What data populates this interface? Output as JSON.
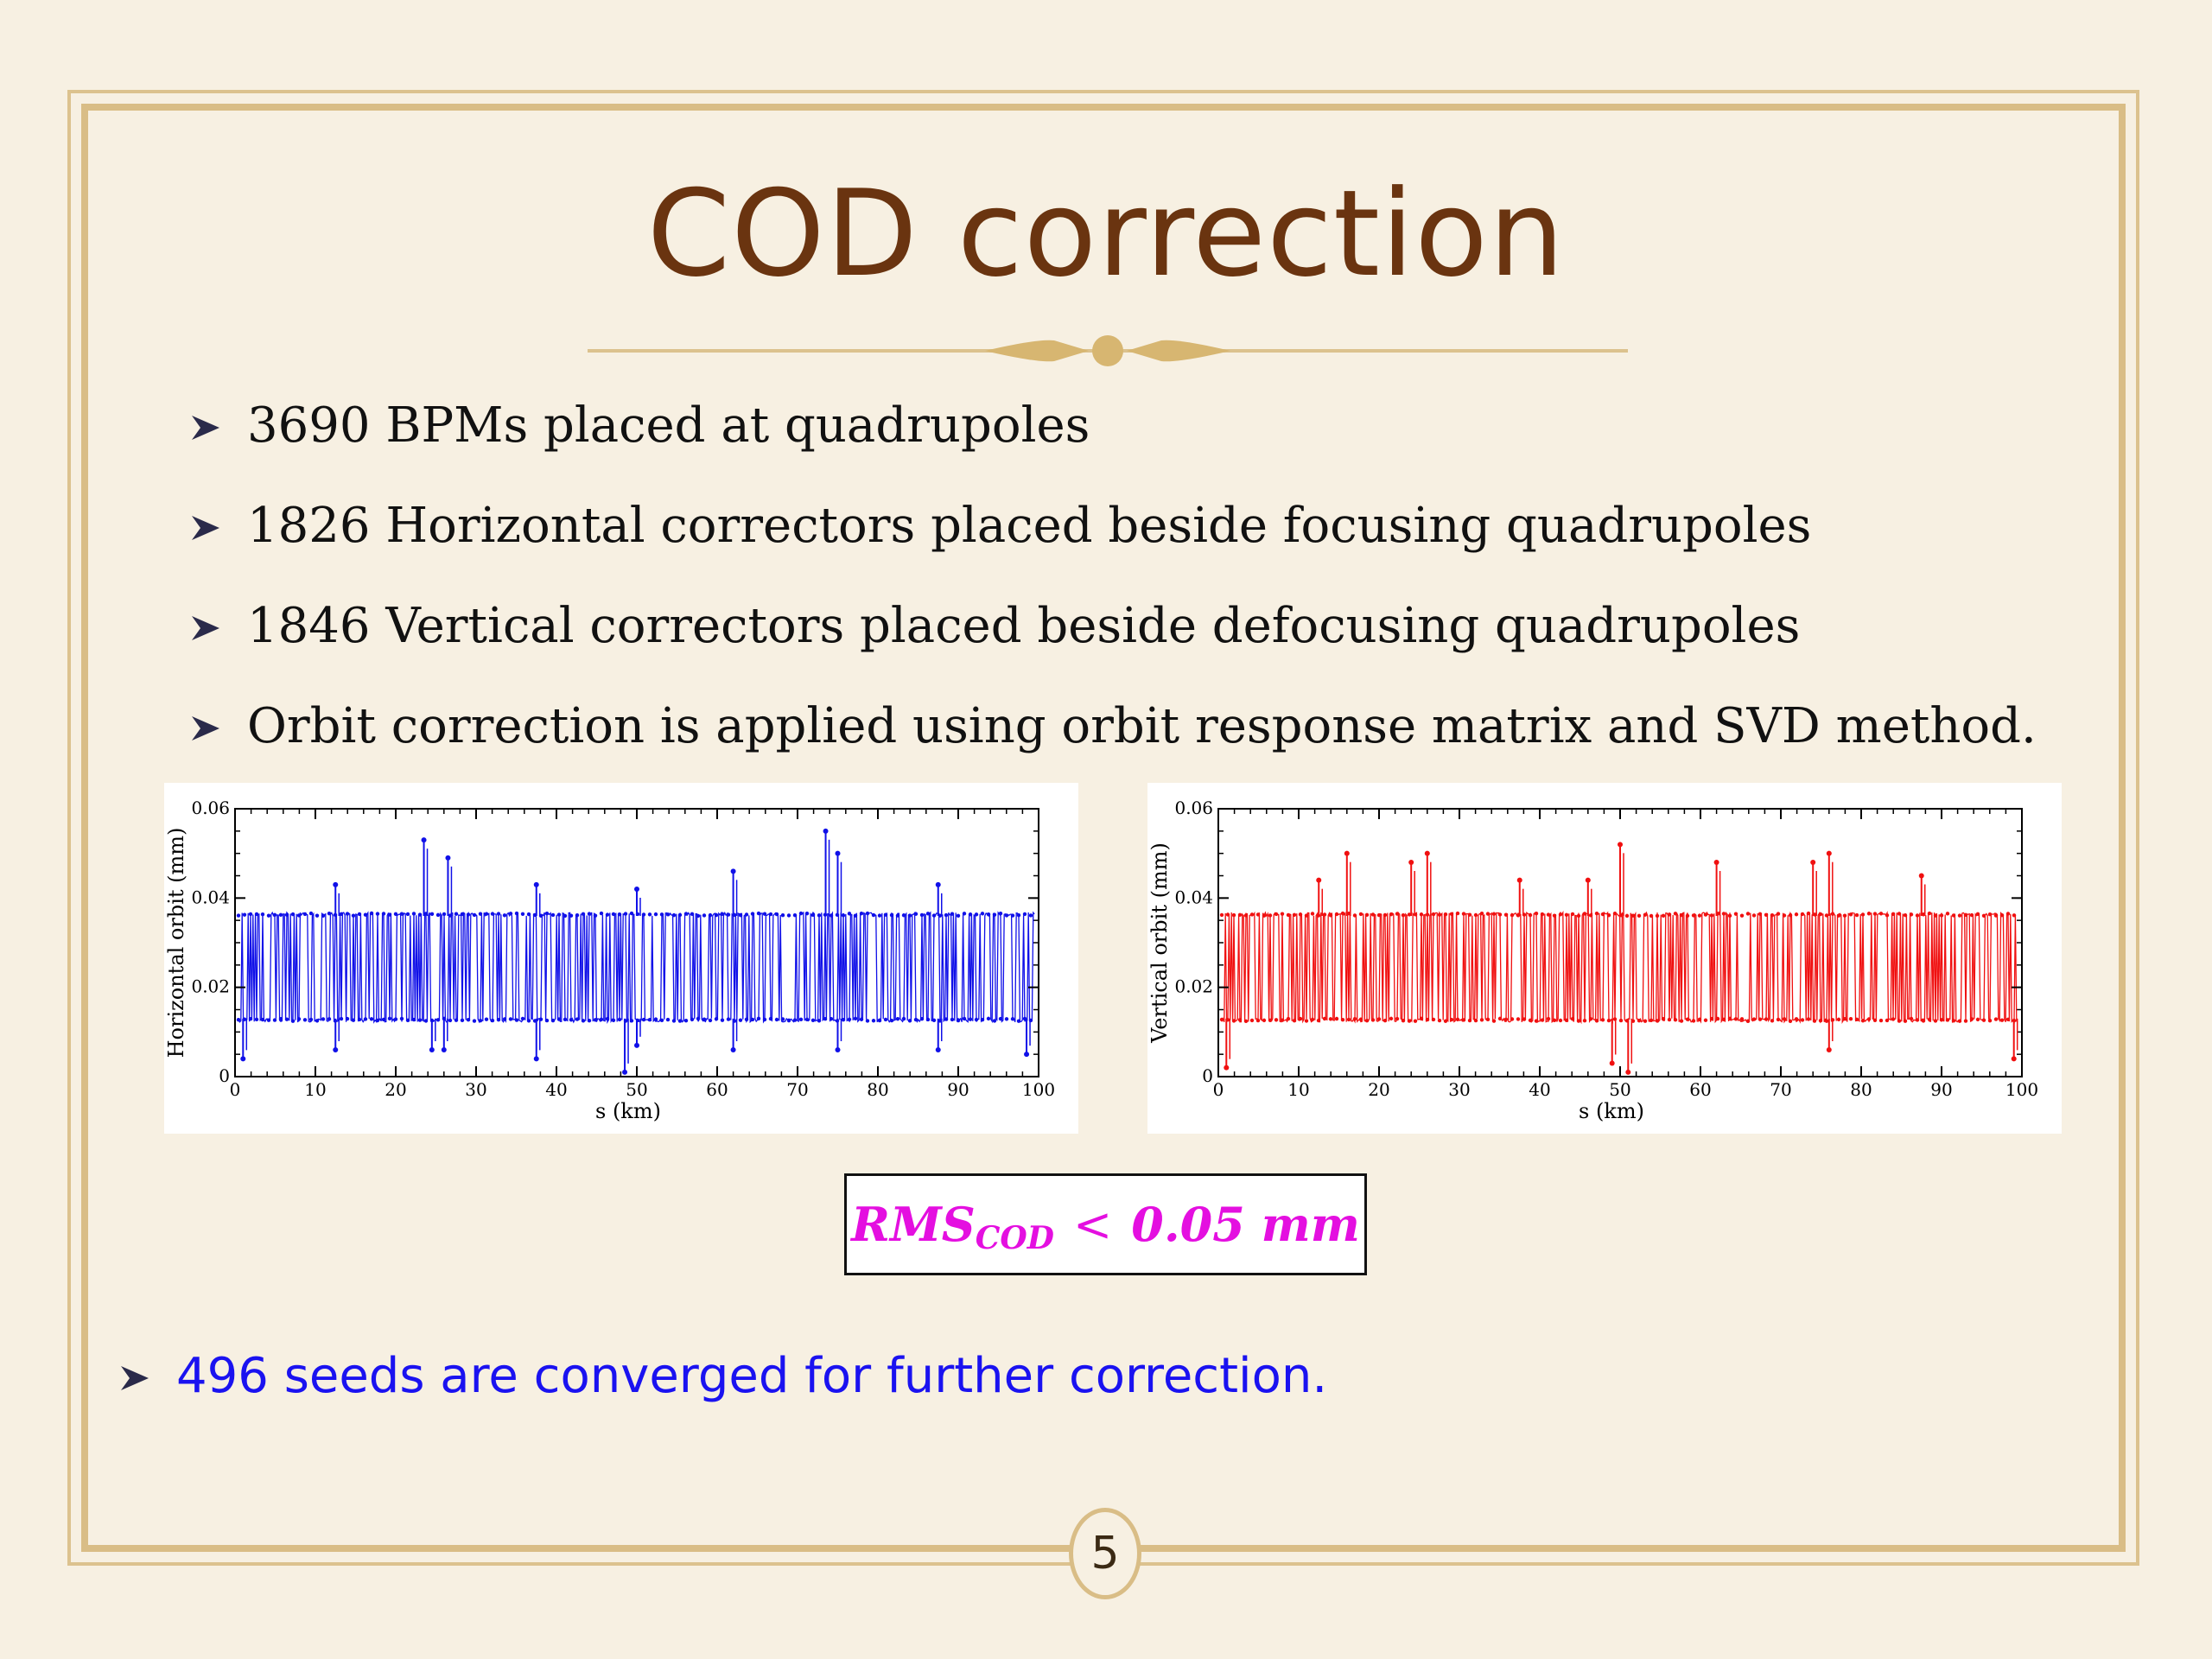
{
  "slide": {
    "title": "COD correction",
    "bullets": [
      "3690 BPMs placed at quadrupoles",
      "1826 Horizontal correctors placed beside focusing quadrupoles",
      "1846 Vertical correctors placed beside defocusing quadrupoles",
      "Orbit correction is applied using orbit response matrix and SVD method."
    ],
    "rms": {
      "main": "RMS",
      "sub": "COD",
      "relation": "<",
      "value": "0.05 mm"
    },
    "conclusion": "496 seeds are converged for further correction.",
    "page_number": "5"
  },
  "colors": {
    "title": "#6a3410",
    "frame": "#d9bd86",
    "conclusion": "#1a12f0",
    "rms": "#e40fe0"
  },
  "chart_data": [
    {
      "type": "scatter",
      "title": "",
      "xlabel": "s (km)",
      "ylabel": "Horizontal orbit (mm)",
      "xlim": [
        0,
        100
      ],
      "ylim": [
        0,
        0.06
      ],
      "xticks": [
        "0",
        "10",
        "20",
        "30",
        "40",
        "50",
        "60",
        "70",
        "80",
        "90",
        "100"
      ],
      "yticks": [
        "0",
        "0.02",
        "0.04",
        "0.06"
      ],
      "color": "#1010e8",
      "band": {
        "x": [
          0,
          100
        ],
        "y": [
          0.013,
          0.036
        ]
      },
      "spikes": [
        {
          "x": 1,
          "y": 0.004
        },
        {
          "x": 12.5,
          "y": 0.043
        },
        {
          "x": 12.5,
          "y": 0.006
        },
        {
          "x": 23.5,
          "y": 0.053
        },
        {
          "x": 24.5,
          "y": 0.006
        },
        {
          "x": 26.5,
          "y": 0.049
        },
        {
          "x": 26,
          "y": 0.006
        },
        {
          "x": 37.5,
          "y": 0.043
        },
        {
          "x": 37.5,
          "y": 0.004
        },
        {
          "x": 48.5,
          "y": 0.001
        },
        {
          "x": 50,
          "y": 0.042
        },
        {
          "x": 50,
          "y": 0.007
        },
        {
          "x": 62,
          "y": 0.046
        },
        {
          "x": 62,
          "y": 0.006
        },
        {
          "x": 73.5,
          "y": 0.055
        },
        {
          "x": 75,
          "y": 0.05
        },
        {
          "x": 75,
          "y": 0.006
        },
        {
          "x": 87.5,
          "y": 0.043
        },
        {
          "x": 87.5,
          "y": 0.006
        },
        {
          "x": 98.5,
          "y": 0.005
        }
      ]
    },
    {
      "type": "scatter",
      "title": "",
      "xlabel": "s (km)",
      "ylabel": "Vertical orbit (mm)",
      "xlim": [
        0,
        100
      ],
      "ylim": [
        0,
        0.06
      ],
      "xticks": [
        "0",
        "10",
        "20",
        "30",
        "40",
        "50",
        "60",
        "70",
        "80",
        "90",
        "100"
      ],
      "yticks": [
        "0",
        "0.02",
        "0.04",
        "0.06"
      ],
      "color": "#f01010",
      "band": {
        "x": [
          0,
          100
        ],
        "y": [
          0.013,
          0.036
        ]
      },
      "spikes": [
        {
          "x": 1,
          "y": 0.002
        },
        {
          "x": 12.5,
          "y": 0.044
        },
        {
          "x": 16,
          "y": 0.05
        },
        {
          "x": 24,
          "y": 0.048
        },
        {
          "x": 26,
          "y": 0.05
        },
        {
          "x": 37.5,
          "y": 0.044
        },
        {
          "x": 46,
          "y": 0.044
        },
        {
          "x": 49,
          "y": 0.003
        },
        {
          "x": 50,
          "y": 0.052
        },
        {
          "x": 51,
          "y": 0.001
        },
        {
          "x": 62,
          "y": 0.048
        },
        {
          "x": 74,
          "y": 0.048
        },
        {
          "x": 76,
          "y": 0.05
        },
        {
          "x": 76,
          "y": 0.006
        },
        {
          "x": 87.5,
          "y": 0.045
        },
        {
          "x": 99,
          "y": 0.004
        }
      ]
    }
  ]
}
